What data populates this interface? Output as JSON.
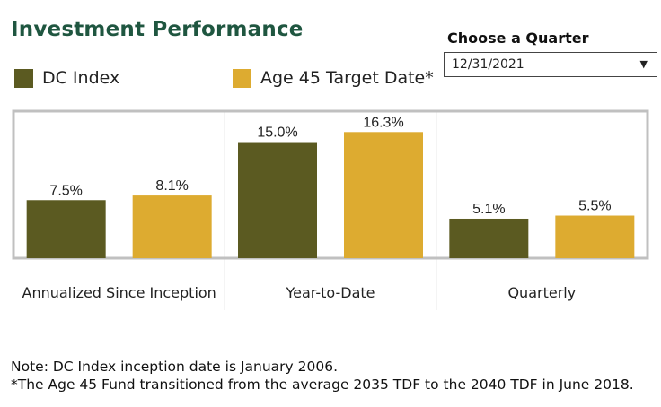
{
  "header": {
    "title": "Investment Performance",
    "quarter_label": "Choose a Quarter",
    "quarter_value": "12/31/2021"
  },
  "colors": {
    "dc_index": "#5b5a21",
    "age45": "#ddab30",
    "frame": "#c0c0c0",
    "title": "#1f5640"
  },
  "icons": {
    "dropdown": "caret-down-icon"
  },
  "chart_data": {
    "type": "bar",
    "categories": [
      "Annualized Since Inception",
      "Year-to-Date",
      "Quarterly"
    ],
    "series": [
      {
        "name": "DC Index",
        "values": [
          7.5,
          15.0,
          5.1
        ],
        "labels": [
          "7.5%",
          "15.0%",
          "5.1%"
        ]
      },
      {
        "name": "Age 45 Target Date*",
        "values": [
          8.1,
          16.3,
          5.5
        ],
        "labels": [
          "8.1%",
          "16.3%",
          "5.5%"
        ]
      }
    ],
    "unit": "%",
    "ylim": [
      0,
      19
    ],
    "grid": false,
    "legend": "top-left"
  },
  "notes": [
    "Note: DC Index inception date is January 2006.",
    "*The Age 45 Fund transitioned from the average 2035 TDF to the 2040 TDF in June 2018."
  ]
}
